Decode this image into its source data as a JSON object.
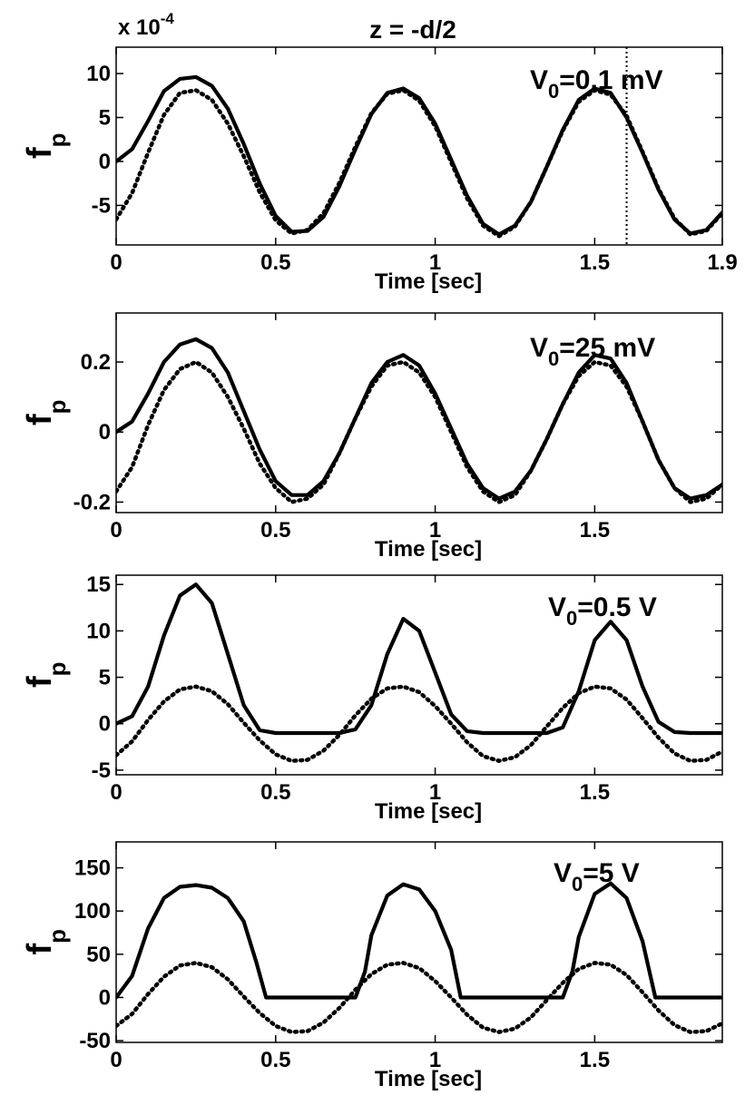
{
  "figure": {
    "title": "z = -d/2",
    "multiplier_base": "x 10",
    "multiplier_exp": "-4"
  },
  "chart_data": [
    {
      "type": "line",
      "annotation_main": "V",
      "annotation_sub": "0",
      "annotation_rest": "=0.1 mV",
      "ylabel_main": "f",
      "ylabel_sub": "p",
      "xlabel": "Time [sec]",
      "xlim": [
        0,
        1.9
      ],
      "ylim": [
        -9.5,
        13
      ],
      "xticks": [
        0,
        0.5,
        1,
        1.5,
        1.9
      ],
      "xtick_labels": [
        "0",
        "0.5",
        "1",
        "1.5",
        "1.9"
      ],
      "yticks": [
        -5,
        0,
        5,
        10
      ],
      "ytick_labels": [
        "-5",
        "0",
        "5",
        "10"
      ],
      "vline_x": 1.6,
      "series": [
        {
          "style": "solid",
          "x": [
            0,
            0.05,
            0.1,
            0.15,
            0.2,
            0.25,
            0.3,
            0.35,
            0.4,
            0.45,
            0.5,
            0.55,
            0.6,
            0.65,
            0.7,
            0.75,
            0.8,
            0.85,
            0.9,
            0.95,
            1.0,
            1.05,
            1.1,
            1.15,
            1.2,
            1.25,
            1.3,
            1.35,
            1.4,
            1.45,
            1.5,
            1.55,
            1.6,
            1.65,
            1.7,
            1.75,
            1.8,
            1.85,
            1.9
          ],
          "y": [
            0,
            1.4,
            4.6,
            8.0,
            9.4,
            9.6,
            8.6,
            6.0,
            2.0,
            -2.5,
            -6.2,
            -8.0,
            -7.9,
            -6.3,
            -2.8,
            1.4,
            5.4,
            7.8,
            8.3,
            7.2,
            4.3,
            0.2,
            -3.9,
            -7.1,
            -8.3,
            -7.3,
            -4.6,
            -0.6,
            3.6,
            7.0,
            8.3,
            7.8,
            5.0,
            1.0,
            -3.2,
            -6.6,
            -8.2,
            -7.8,
            -5.8
          ]
        },
        {
          "style": "dotted",
          "x": [
            0,
            0.05,
            0.1,
            0.15,
            0.2,
            0.25,
            0.3,
            0.35,
            0.4,
            0.45,
            0.5,
            0.55,
            0.6,
            0.65,
            0.7,
            0.75,
            0.8,
            0.85,
            0.9,
            0.95,
            1.0,
            1.05,
            1.1,
            1.15,
            1.2,
            1.25,
            1.3,
            1.35,
            1.4,
            1.45,
            1.5,
            1.55,
            1.6,
            1.65,
            1.7,
            1.75,
            1.8,
            1.85,
            1.9
          ],
          "y": [
            -6.6,
            -3.6,
            1.0,
            5.3,
            7.8,
            8.1,
            7.0,
            4.3,
            0.6,
            -3.5,
            -6.7,
            -8.2,
            -7.8,
            -5.9,
            -2.4,
            1.7,
            5.5,
            7.7,
            8.1,
            6.9,
            4.0,
            -0.1,
            -4.2,
            -7.3,
            -8.5,
            -7.4,
            -4.6,
            -0.6,
            3.5,
            6.8,
            8.1,
            7.6,
            5.2,
            1.1,
            -3.1,
            -6.5,
            -8.3,
            -7.9,
            -5.9
          ]
        }
      ]
    },
    {
      "type": "line",
      "annotation_main": "V",
      "annotation_sub": "0",
      "annotation_rest": "=25 mV",
      "ylabel_main": "f",
      "ylabel_sub": "p",
      "xlabel": "Time [sec]",
      "xlim": [
        0,
        1.9
      ],
      "ylim": [
        -0.23,
        0.34
      ],
      "xticks": [
        0,
        0.5,
        1,
        1.5
      ],
      "xtick_labels": [
        "0",
        "0.5",
        "1",
        "1.5"
      ],
      "yticks": [
        -0.2,
        0,
        0.2
      ],
      "ytick_labels": [
        "-0.2",
        "0",
        "0.2"
      ],
      "series": [
        {
          "style": "solid",
          "x": [
            0,
            0.05,
            0.1,
            0.15,
            0.2,
            0.25,
            0.3,
            0.35,
            0.4,
            0.45,
            0.5,
            0.55,
            0.6,
            0.65,
            0.7,
            0.75,
            0.8,
            0.85,
            0.9,
            0.95,
            1.0,
            1.05,
            1.1,
            1.15,
            1.2,
            1.25,
            1.3,
            1.35,
            1.4,
            1.45,
            1.5,
            1.55,
            1.6,
            1.65,
            1.7,
            1.75,
            1.8,
            1.85,
            1.9
          ],
          "y": [
            0,
            0.03,
            0.11,
            0.2,
            0.25,
            0.265,
            0.24,
            0.17,
            0.06,
            -0.05,
            -0.14,
            -0.18,
            -0.18,
            -0.14,
            -0.06,
            0.04,
            0.14,
            0.2,
            0.22,
            0.19,
            0.11,
            0.01,
            -0.09,
            -0.16,
            -0.19,
            -0.17,
            -0.11,
            -0.02,
            0.08,
            0.17,
            0.22,
            0.21,
            0.14,
            0.03,
            -0.08,
            -0.16,
            -0.19,
            -0.18,
            -0.15
          ]
        },
        {
          "style": "dotted",
          "x": [
            0,
            0.05,
            0.1,
            0.15,
            0.2,
            0.25,
            0.3,
            0.35,
            0.4,
            0.45,
            0.5,
            0.55,
            0.6,
            0.65,
            0.7,
            0.75,
            0.8,
            0.85,
            0.9,
            0.95,
            1.0,
            1.05,
            1.1,
            1.15,
            1.2,
            1.25,
            1.3,
            1.35,
            1.4,
            1.45,
            1.5,
            1.55,
            1.6,
            1.65,
            1.7,
            1.75,
            1.8,
            1.85,
            1.9
          ],
          "y": [
            -0.17,
            -0.1,
            0.02,
            0.12,
            0.18,
            0.2,
            0.17,
            0.1,
            0.01,
            -0.09,
            -0.16,
            -0.2,
            -0.19,
            -0.15,
            -0.06,
            0.04,
            0.13,
            0.19,
            0.2,
            0.17,
            0.1,
            0.0,
            -0.1,
            -0.17,
            -0.2,
            -0.18,
            -0.11,
            -0.02,
            0.08,
            0.16,
            0.2,
            0.19,
            0.13,
            0.03,
            -0.08,
            -0.16,
            -0.2,
            -0.19,
            -0.15
          ]
        }
      ]
    },
    {
      "type": "line",
      "annotation_main": "V",
      "annotation_sub": "0",
      "annotation_rest": "=0.5 V",
      "ylabel_main": "f",
      "ylabel_sub": "p",
      "xlabel": "Time [sec]",
      "xlim": [
        0,
        1.9
      ],
      "ylim": [
        -5.5,
        16
      ],
      "xticks": [
        0,
        0.5,
        1,
        1.5
      ],
      "xtick_labels": [
        "0",
        "0.5",
        "1",
        "1.5"
      ],
      "yticks": [
        -5,
        0,
        5,
        10,
        15
      ],
      "ytick_labels": [
        "-5",
        "0",
        "5",
        "10",
        "15"
      ],
      "series": [
        {
          "style": "solid",
          "x": [
            0,
            0.05,
            0.1,
            0.15,
            0.2,
            0.25,
            0.3,
            0.35,
            0.4,
            0.45,
            0.5,
            0.55,
            0.6,
            0.65,
            0.7,
            0.75,
            0.8,
            0.85,
            0.9,
            0.95,
            1.0,
            1.05,
            1.1,
            1.15,
            1.2,
            1.25,
            1.3,
            1.35,
            1.4,
            1.45,
            1.5,
            1.55,
            1.6,
            1.65,
            1.7,
            1.75,
            1.8,
            1.85,
            1.9
          ],
          "y": [
            0,
            0.8,
            4.0,
            9.5,
            13.8,
            15.0,
            13.0,
            7.5,
            2.0,
            -0.7,
            -1.0,
            -1.0,
            -1.0,
            -1.0,
            -1.0,
            -0.6,
            2.0,
            7.5,
            11.3,
            10.0,
            5.5,
            1.0,
            -0.8,
            -1.0,
            -1.0,
            -1.0,
            -1.0,
            -1.0,
            -0.4,
            3.5,
            9.0,
            11.0,
            9.0,
            4.0,
            0.2,
            -0.9,
            -1.0,
            -1.0,
            -1.0
          ]
        },
        {
          "style": "dotted",
          "x": [
            0,
            0.05,
            0.1,
            0.15,
            0.2,
            0.25,
            0.3,
            0.35,
            0.4,
            0.45,
            0.5,
            0.55,
            0.6,
            0.65,
            0.7,
            0.75,
            0.8,
            0.85,
            0.9,
            0.95,
            1.0,
            1.05,
            1.1,
            1.15,
            1.2,
            1.25,
            1.3,
            1.35,
            1.4,
            1.45,
            1.5,
            1.55,
            1.6,
            1.65,
            1.7,
            1.75,
            1.8,
            1.85,
            1.9
          ],
          "y": [
            -3.4,
            -1.9,
            0.4,
            2.4,
            3.7,
            4.0,
            3.5,
            2.1,
            0.1,
            -1.8,
            -3.3,
            -4.0,
            -3.9,
            -2.9,
            -1.2,
            0.9,
            2.7,
            3.8,
            4.0,
            3.4,
            1.9,
            0.0,
            -2.0,
            -3.5,
            -4.0,
            -3.6,
            -2.3,
            -0.3,
            1.7,
            3.3,
            4.0,
            3.8,
            2.6,
            0.6,
            -1.5,
            -3.2,
            -4.0,
            -3.9,
            -3.0
          ]
        }
      ]
    },
    {
      "type": "line",
      "annotation_main": "V",
      "annotation_sub": "0",
      "annotation_rest": "=5 V",
      "ylabel_main": "f",
      "ylabel_sub": "p",
      "xlabel": "Time [sec]",
      "xlim": [
        0,
        1.9
      ],
      "ylim": [
        -52,
        180
      ],
      "xticks": [
        0,
        0.5,
        1,
        1.5
      ],
      "xtick_labels": [
        "0",
        "0.5",
        "1",
        "1.5"
      ],
      "yticks": [
        -50,
        0,
        50,
        100,
        150
      ],
      "ytick_labels": [
        "-50",
        "0",
        "50",
        "100",
        "150"
      ],
      "series": [
        {
          "style": "solid",
          "x": [
            0,
            0.05,
            0.1,
            0.15,
            0.2,
            0.25,
            0.3,
            0.35,
            0.4,
            0.44,
            0.47,
            0.5,
            0.55,
            0.6,
            0.65,
            0.7,
            0.75,
            0.78,
            0.8,
            0.85,
            0.9,
            0.95,
            1.0,
            1.05,
            1.08,
            1.1,
            1.15,
            1.2,
            1.25,
            1.3,
            1.35,
            1.4,
            1.43,
            1.45,
            1.5,
            1.55,
            1.6,
            1.65,
            1.69,
            1.72,
            1.75,
            1.8,
            1.85,
            1.9
          ],
          "y": [
            0,
            25,
            80,
            115,
            128,
            130,
            127,
            115,
            88,
            40,
            0,
            0,
            0,
            0,
            0,
            0,
            0,
            30,
            72,
            118,
            131,
            125,
            100,
            55,
            0,
            0,
            0,
            0,
            0,
            0,
            0,
            0,
            30,
            70,
            120,
            132,
            115,
            65,
            0,
            0,
            0,
            0,
            0,
            0
          ]
        },
        {
          "style": "dotted",
          "x": [
            0,
            0.05,
            0.1,
            0.15,
            0.2,
            0.25,
            0.3,
            0.35,
            0.4,
            0.45,
            0.5,
            0.55,
            0.6,
            0.65,
            0.7,
            0.75,
            0.8,
            0.85,
            0.9,
            0.95,
            1.0,
            1.05,
            1.1,
            1.15,
            1.2,
            1.25,
            1.3,
            1.35,
            1.4,
            1.45,
            1.5,
            1.55,
            1.6,
            1.65,
            1.7,
            1.75,
            1.8,
            1.85,
            1.9
          ],
          "y": [
            -33,
            -19,
            4,
            24,
            37,
            40,
            35,
            21,
            1,
            -18,
            -33,
            -40,
            -39,
            -29,
            -12,
            9,
            27,
            38,
            40,
            34,
            19,
            0,
            -20,
            -35,
            -40,
            -36,
            -23,
            -3,
            17,
            33,
            40,
            38,
            26,
            6,
            -15,
            -32,
            -40,
            -39,
            -30
          ]
        }
      ]
    }
  ]
}
